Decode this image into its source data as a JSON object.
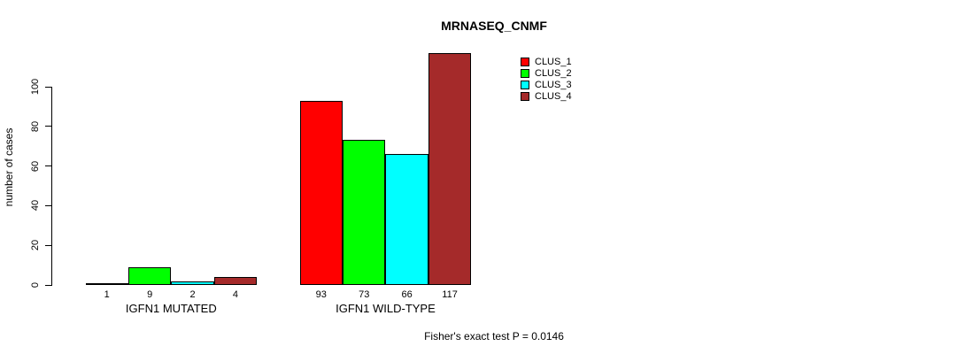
{
  "title": "MRNASEQ_CNMF",
  "footer": "Fisher's exact test P = 0.0146",
  "chart_data": {
    "type": "bar",
    "title": "MRNASEQ_CNMF",
    "xlabel": "",
    "ylabel": "number of cases",
    "categories": [
      "IGFN1 MUTATED",
      "IGFN1 WILD-TYPE"
    ],
    "series": [
      {
        "name": "CLUS_1",
        "color": "#ff0000",
        "values": [
          1,
          93
        ]
      },
      {
        "name": "CLUS_2",
        "color": "#00ff00",
        "values": [
          9,
          73
        ]
      },
      {
        "name": "CLUS_3",
        "color": "#00ffff",
        "values": [
          2,
          66
        ]
      },
      {
        "name": "CLUS_4",
        "color": "#a52a2a",
        "values": [
          4,
          117
        ]
      }
    ],
    "bar_value_labels": [
      [
        "1",
        "9",
        "2",
        "4"
      ],
      [
        "93",
        "73",
        "66",
        "117"
      ]
    ],
    "yticks": [
      0,
      20,
      40,
      60,
      80,
      100
    ],
    "ylim": [
      0,
      120
    ],
    "grid": false,
    "legend_position": "top-right",
    "legend_entries": [
      "CLUS_1",
      "CLUS_2",
      "CLUS_3",
      "CLUS_4"
    ],
    "annotation": "Fisher's exact test P = 0.0146"
  }
}
